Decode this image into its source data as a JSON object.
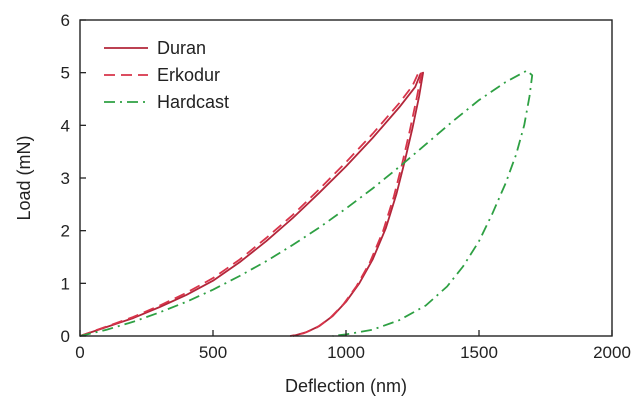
{
  "chart_data": {
    "type": "line",
    "title": "",
    "xlabel": "Deflection (nm)",
    "ylabel": "Load (mN)",
    "xlim": [
      0,
      2000
    ],
    "ylim": [
      0,
      6
    ],
    "xticks": [
      0,
      500,
      1000,
      1500,
      2000
    ],
    "yticks": [
      0,
      1,
      2,
      3,
      4,
      5,
      6
    ],
    "xtick_labels": [
      "0",
      "500",
      "1000",
      "1500",
      "2000"
    ],
    "ytick_labels": [
      "0",
      "1",
      "2",
      "3",
      "4",
      "5",
      "6"
    ],
    "grid": false,
    "legend_position": "top-left",
    "series": [
      {
        "name": "Duran",
        "color": "#b3263a",
        "style": "solid",
        "loading": [
          [
            0,
            0
          ],
          [
            100,
            0.17
          ],
          [
            200,
            0.34
          ],
          [
            300,
            0.55
          ],
          [
            400,
            0.78
          ],
          [
            500,
            1.05
          ],
          [
            600,
            1.4
          ],
          [
            700,
            1.8
          ],
          [
            800,
            2.24
          ],
          [
            900,
            2.72
          ],
          [
            1000,
            3.22
          ],
          [
            1100,
            3.76
          ],
          [
            1200,
            4.34
          ],
          [
            1260,
            4.73
          ],
          [
            1280,
            4.98
          ]
        ],
        "unloading": [
          [
            1290,
            5.0
          ],
          [
            1275,
            4.55
          ],
          [
            1250,
            3.95
          ],
          [
            1220,
            3.3
          ],
          [
            1190,
            2.7
          ],
          [
            1150,
            2.05
          ],
          [
            1100,
            1.45
          ],
          [
            1050,
            1.0
          ],
          [
            1000,
            0.65
          ],
          [
            950,
            0.38
          ],
          [
            900,
            0.19
          ],
          [
            850,
            0.07
          ],
          [
            800,
            0
          ]
        ]
      },
      {
        "name": "Erkodur",
        "color": "#d8344a",
        "style": "dashed",
        "loading": [
          [
            0,
            0
          ],
          [
            100,
            0.18
          ],
          [
            200,
            0.36
          ],
          [
            300,
            0.58
          ],
          [
            400,
            0.82
          ],
          [
            500,
            1.1
          ],
          [
            600,
            1.45
          ],
          [
            700,
            1.86
          ],
          [
            800,
            2.3
          ],
          [
            900,
            2.79
          ],
          [
            1000,
            3.3
          ],
          [
            1100,
            3.84
          ],
          [
            1200,
            4.42
          ],
          [
            1250,
            4.75
          ],
          [
            1270,
            4.97
          ]
        ],
        "unloading": [
          [
            1285,
            5.02
          ],
          [
            1265,
            4.5
          ],
          [
            1240,
            3.9
          ],
          [
            1210,
            3.25
          ],
          [
            1180,
            2.65
          ],
          [
            1140,
            2.0
          ],
          [
            1090,
            1.4
          ],
          [
            1040,
            0.95
          ],
          [
            990,
            0.6
          ],
          [
            940,
            0.34
          ],
          [
            890,
            0.16
          ],
          [
            840,
            0.05
          ],
          [
            790,
            0
          ]
        ]
      },
      {
        "name": "Hardcast",
        "color": "#2ea043",
        "style": "dashdot",
        "loading": [
          [
            0,
            0
          ],
          [
            100,
            0.12
          ],
          [
            200,
            0.27
          ],
          [
            300,
            0.45
          ],
          [
            400,
            0.65
          ],
          [
            500,
            0.88
          ],
          [
            600,
            1.14
          ],
          [
            700,
            1.42
          ],
          [
            800,
            1.73
          ],
          [
            900,
            2.06
          ],
          [
            1000,
            2.42
          ],
          [
            1100,
            2.8
          ],
          [
            1200,
            3.21
          ],
          [
            1300,
            3.64
          ],
          [
            1400,
            4.07
          ],
          [
            1500,
            4.48
          ],
          [
            1600,
            4.82
          ],
          [
            1680,
            5.04
          ]
        ],
        "unloading": [
          [
            1700,
            4.95
          ],
          [
            1690,
            4.55
          ],
          [
            1670,
            4.0
          ],
          [
            1640,
            3.45
          ],
          [
            1600,
            2.9
          ],
          [
            1550,
            2.32
          ],
          [
            1500,
            1.8
          ],
          [
            1440,
            1.32
          ],
          [
            1380,
            0.94
          ],
          [
            1300,
            0.58
          ],
          [
            1200,
            0.3
          ],
          [
            1100,
            0.12
          ],
          [
            1000,
            0.03
          ],
          [
            950,
            0
          ]
        ]
      }
    ]
  }
}
